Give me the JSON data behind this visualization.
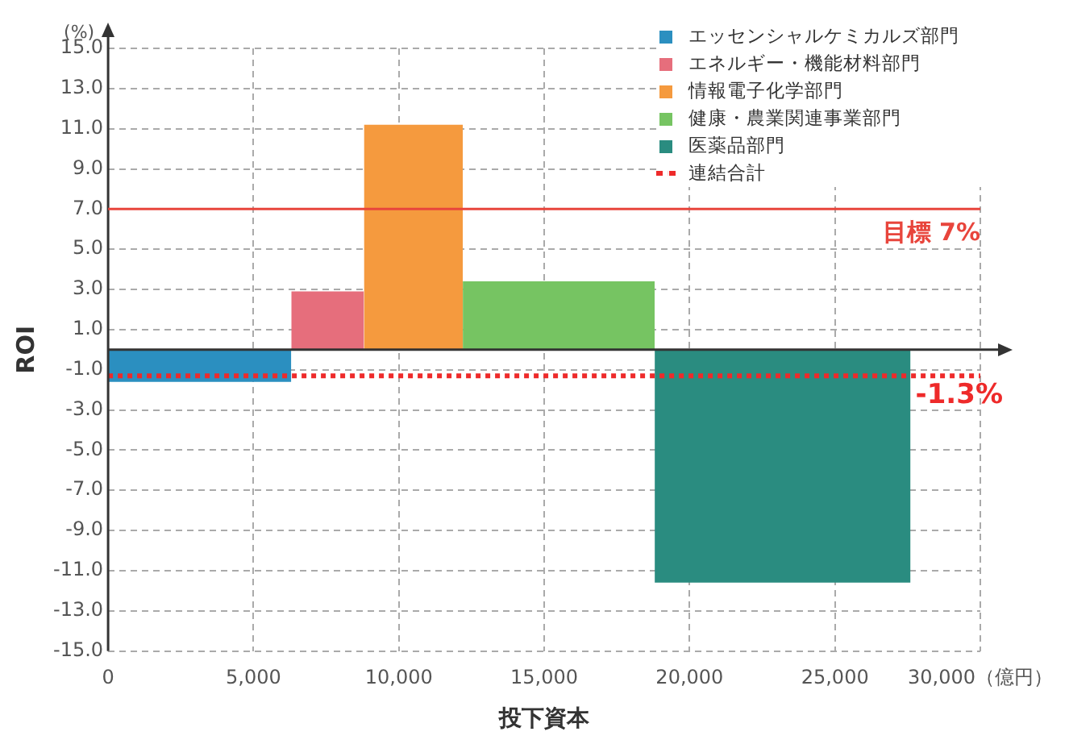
{
  "chart_data": {
    "type": "area",
    "xlabel": "投下資本",
    "ylabel": "ROI",
    "annotations": [
      "(%)",
      {
        "text": "-1.3%",
        "x": 30000,
        "y": -1.3
      }
    ],
    "xlim": [
      0,
      30000
    ],
    "ylim": [
      -15,
      15
    ],
    "xticks": [
      0,
      {
        "value": 5000,
        "label": "5,000"
      },
      {
        "value": 10000,
        "label": "10,000"
      },
      {
        "value": 15000,
        "label": "15,000"
      },
      {
        "value": 20000,
        "label": "20,000"
      },
      {
        "value": 25000,
        "label": "25,000"
      },
      {
        "value": 30000,
        "label": "30,000（億円）"
      }
    ],
    "yticks": [
      {
        "value": -15,
        "label": "-15.0"
      },
      {
        "value": -13,
        "label": "-13.0"
      },
      {
        "value": -11,
        "label": "-11.0"
      },
      {
        "value": -9,
        "label": "-9.0"
      },
      {
        "value": -7,
        "label": "-7.0"
      },
      {
        "value": -5,
        "label": "-5.0"
      },
      {
        "value": -3,
        "label": "-3.0"
      },
      {
        "value": -1,
        "label": "-1.0"
      },
      {
        "value": 1,
        "label": "1.0"
      },
      {
        "value": 3,
        "label": "3.0"
      },
      {
        "value": 5,
        "label": "5.0"
      },
      {
        "value": 7,
        "label": "7.0"
      },
      {
        "value": 9,
        "label": "9.0"
      },
      {
        "value": 11,
        "label": "11.0"
      },
      {
        "value": 13,
        "label": "13.0"
      },
      {
        "value": 15,
        "label": "15.0"
      }
    ],
    "series": [
      {
        "name": "エッセンシャルケミカルズ部門",
        "color": "#2b8fc0",
        "x": [
          0,
          6300
        ],
        "values": [
          -1.6,
          -1.6
        ]
      },
      {
        "name": "エネルギー・機能材料部門",
        "color": "#e66e7c",
        "x": [
          6300,
          8800
        ],
        "values": [
          2.9,
          2.9
        ]
      },
      {
        "name": "情報電子化学部門",
        "color": "#f59a3e",
        "x": [
          8800,
          12200
        ],
        "values": [
          11.2,
          11.2
        ]
      },
      {
        "name": "健康・農業関連事業部門",
        "color": "#76c462",
        "x": [
          12200,
          18800
        ],
        "values": [
          3.4,
          3.4
        ]
      },
      {
        "name": "医薬品部門",
        "color": "#2a8c80",
        "x": [
          18800,
          27600
        ],
        "values": [
          -11.6,
          -11.6
        ]
      },
      {
        "name": "連結合計",
        "color": "#ee2a2a",
        "type": "line",
        "line_style": "dotted",
        "x": [
          0,
          30000
        ],
        "values": [
          -1.3,
          -1.3
        ]
      }
    ],
    "ref_lines": [
      {
        "axis": "y",
        "value": 7,
        "label": "目標 7%",
        "color": "#e8453c"
      }
    ],
    "grid": true,
    "legend": "top right"
  }
}
